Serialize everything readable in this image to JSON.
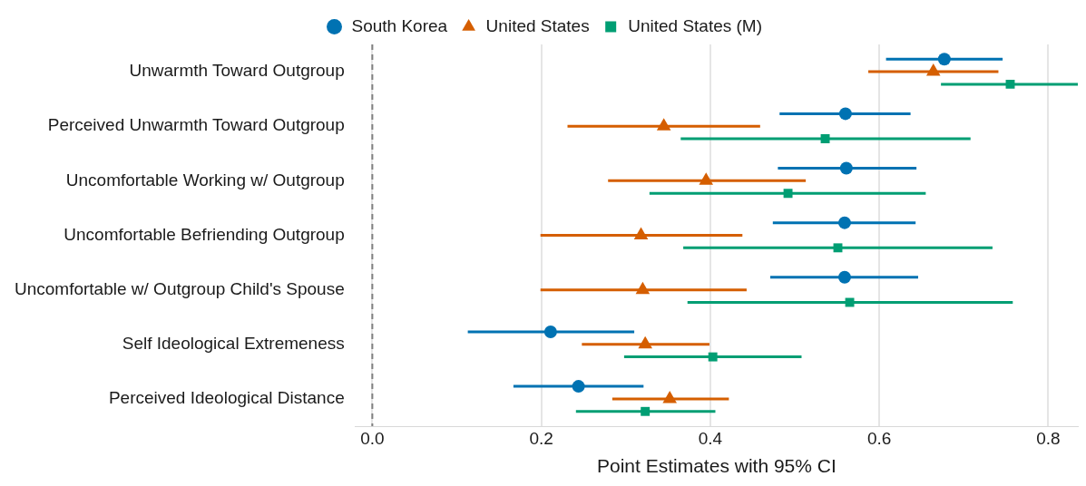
{
  "chart_data": {
    "type": "scatter",
    "orientation": "horizontal",
    "xlabel": "Point Estimates with 95% CI",
    "categories": [
      "Unwarmth Toward Outgroup",
      "Perceived Unwarmth Toward Outgroup",
      "Uncomfortable Working w/ Outgroup",
      "Uncomfortable Befriending Outgroup",
      "Uncomfortable w/ Outgroup Child's Spouse",
      "Self Ideological Extremeness",
      "Perceived Ideological Distance"
    ],
    "series": [
      {
        "name": "South Korea",
        "color": "#0072b2",
        "marker": "circle",
        "values": [
          0.677,
          0.56,
          0.561,
          0.559,
          0.559,
          0.211,
          0.244
        ],
        "errors": [
          [
            0.608,
            0.746
          ],
          [
            0.482,
            0.637
          ],
          [
            0.48,
            0.644
          ],
          [
            0.474,
            0.643
          ],
          [
            0.471,
            0.646
          ],
          [
            0.113,
            0.31
          ],
          [
            0.167,
            0.321
          ]
        ]
      },
      {
        "name": "United States",
        "color": "#d55e00",
        "marker": "triangle",
        "values": [
          0.664,
          0.345,
          0.395,
          0.318,
          0.32,
          0.323,
          0.352
        ],
        "errors": [
          [
            0.587,
            0.741
          ],
          [
            0.231,
            0.459
          ],
          [
            0.279,
            0.513
          ],
          [
            0.199,
            0.438
          ],
          [
            0.199,
            0.443
          ],
          [
            0.248,
            0.399
          ],
          [
            0.284,
            0.422
          ]
        ]
      },
      {
        "name": "United States (M)",
        "color": "#009e73",
        "marker": "square",
        "values": [
          0.755,
          0.536,
          0.492,
          0.551,
          0.565,
          0.403,
          0.323
        ],
        "errors": [
          [
            0.673,
            0.835
          ],
          [
            0.365,
            0.708
          ],
          [
            0.328,
            0.655
          ],
          [
            0.368,
            0.734
          ],
          [
            0.373,
            0.758
          ],
          [
            0.298,
            0.508
          ],
          [
            0.241,
            0.406
          ]
        ]
      }
    ],
    "xlim": [
      -0.02,
      0.835
    ],
    "xticks": [
      {
        "value": 0,
        "label": "0.0"
      },
      0.2,
      0.4,
      0.6,
      0.8
    ],
    "ref_lines": [
      {
        "axis": "x",
        "value": 0,
        "color": "#808080",
        "line_style": "dashed"
      }
    ],
    "grid": "x",
    "legend": "top"
  }
}
